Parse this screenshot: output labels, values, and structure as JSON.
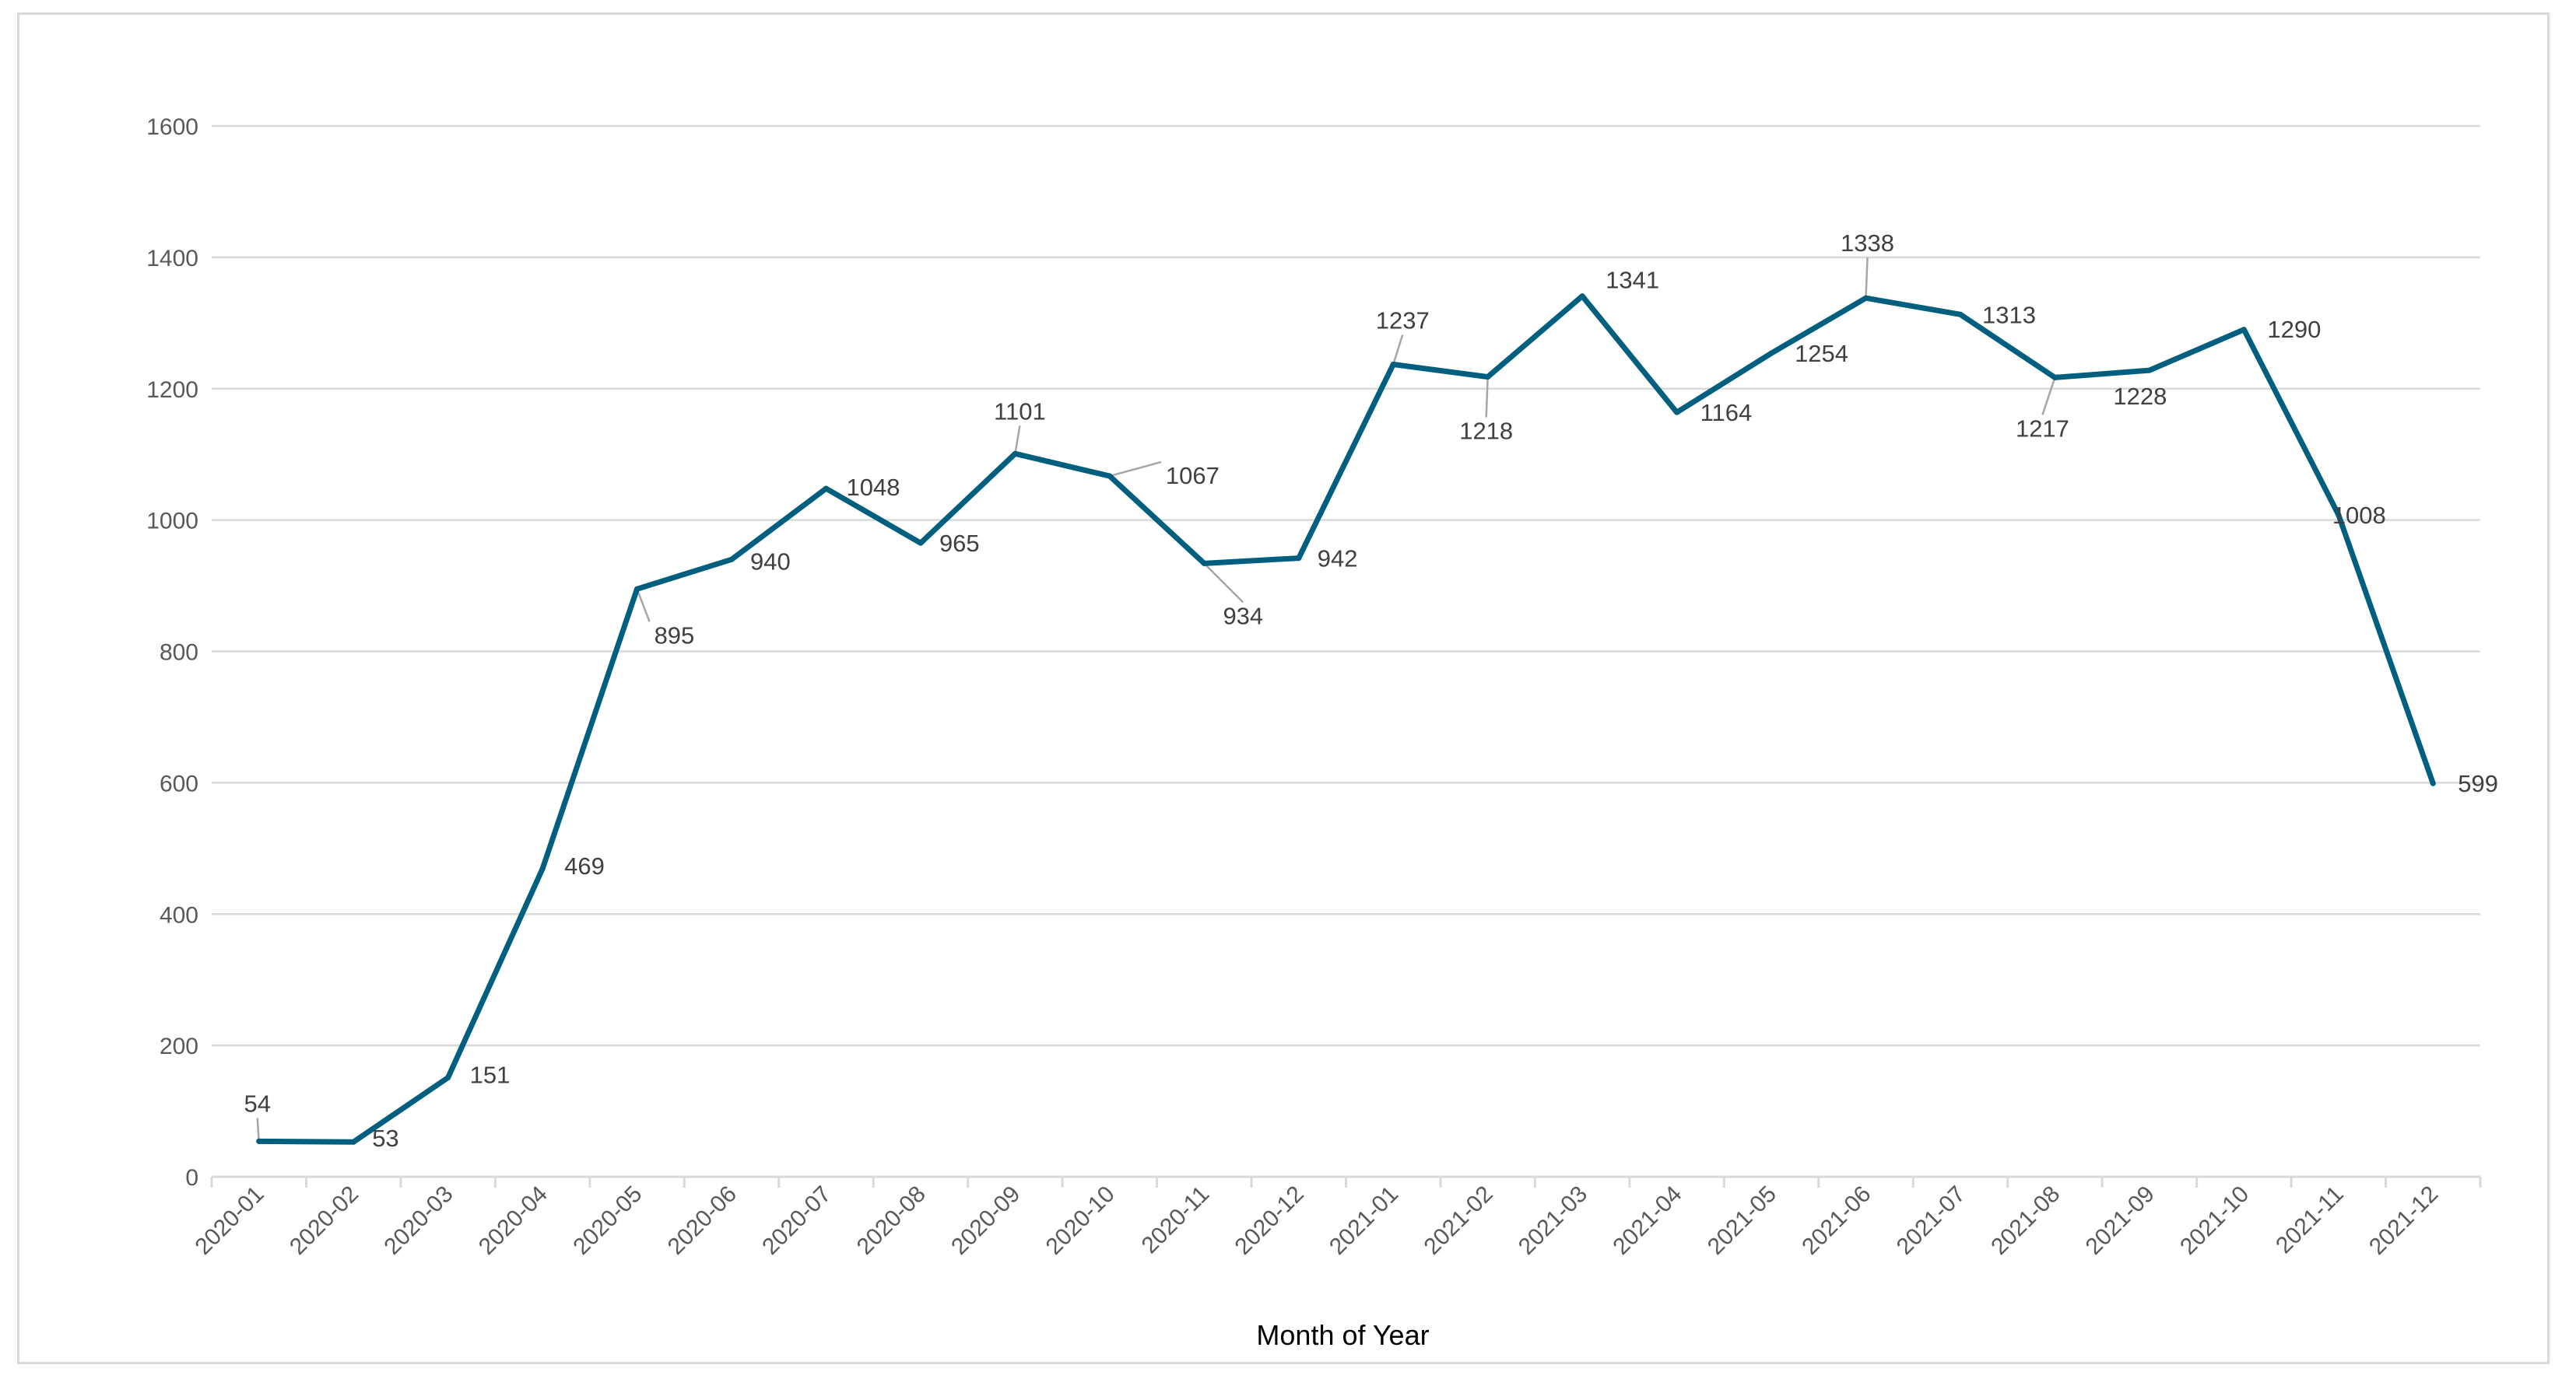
{
  "chart_data": {
    "type": "line",
    "title": "",
    "xlabel": "Month of Year",
    "ylabel": "",
    "ylim": [
      0,
      1600
    ],
    "yticks": [
      0,
      200,
      400,
      600,
      800,
      1000,
      1200,
      1400,
      1600
    ],
    "grid": "horizontal",
    "legend": "none",
    "line_color": "#005f7f",
    "categories": [
      "2020-01",
      "2020-02",
      "2020-03",
      "2020-04",
      "2020-05",
      "2020-06",
      "2020-07",
      "2020-08",
      "2020-09",
      "2020-10",
      "2020-11",
      "2020-12",
      "2021-01",
      "2021-02",
      "2021-03",
      "2021-04",
      "2021-05",
      "2021-06",
      "2021-07",
      "2021-08",
      "2021-09",
      "2021-10",
      "2021-11",
      "2021-12"
    ],
    "values": [
      54,
      53,
      151,
      469,
      895,
      940,
      1048,
      965,
      1101,
      1067,
      934,
      942,
      1237,
      1218,
      1341,
      1164,
      1254,
      1338,
      1313,
      1217,
      1228,
      1290,
      1008,
      599
    ]
  }
}
